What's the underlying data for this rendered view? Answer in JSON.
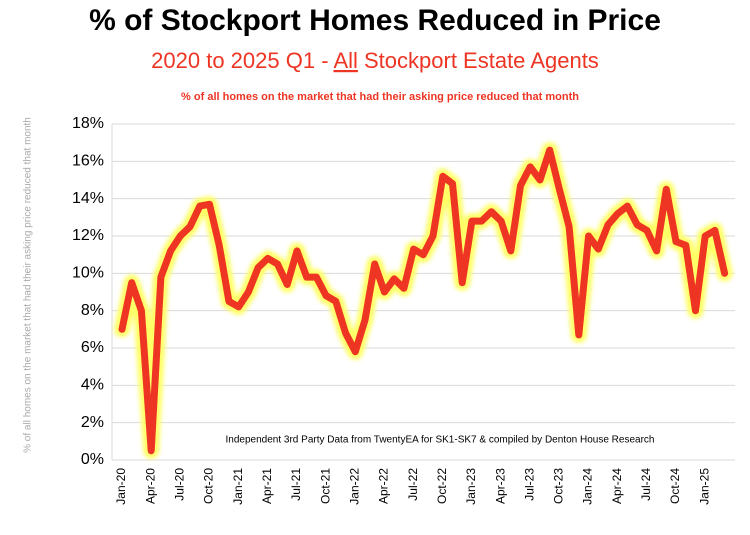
{
  "chart_data": {
    "type": "line",
    "title": "% of Stockport Homes Reduced in Price",
    "subtitle_parts": [
      "2020 to 2025 Q1 - ",
      "All",
      " Stockport Estate Agents"
    ],
    "description": "% of all homes on the market that had their asking price reduced that month",
    "y_label": "% of all homes on the market that had their asking price reduced that month",
    "annotation": "Independent 3rd Party Data from TwentyEA for SK1-SK7 & compiled by Denton House Research",
    "categories": [
      "Jan-20",
      null,
      null,
      "Apr-20",
      null,
      null,
      "Jul-20",
      null,
      null,
      "Oct-20",
      null,
      null,
      "Jan-21",
      null,
      null,
      "Apr-21",
      null,
      null,
      "Jul-21",
      null,
      null,
      "Oct-21",
      null,
      null,
      "Jan-22",
      null,
      null,
      "Apr-22",
      null,
      null,
      "Jul-22",
      null,
      null,
      "Oct-22",
      null,
      null,
      "Jan-23",
      null,
      null,
      "Apr-23",
      null,
      null,
      "Jul-23",
      null,
      null,
      "Oct-23",
      null,
      null,
      "Jan-24",
      null,
      null,
      "Apr-24",
      null,
      null,
      "Jul-24",
      null,
      null,
      "Oct-24",
      null,
      null,
      "Jan-25",
      null,
      null
    ],
    "series": [
      {
        "color": "#ee3524",
        "glow": "#ffff66",
        "values": [
          7,
          9.5,
          8,
          0.5,
          9.8,
          11.2,
          12,
          12.5,
          13.6,
          13.7,
          11.5,
          8.5,
          8.2,
          9,
          10.3,
          10.8,
          10.5,
          9.4,
          11.2,
          9.8,
          9.8,
          8.8,
          8.5,
          6.8,
          5.8,
          7.5,
          10.5,
          9,
          9.7,
          9.2,
          11.3,
          11,
          12,
          15.2,
          14.8,
          9.5,
          12.8,
          12.8,
          13.3,
          12.8,
          11.2,
          14.7,
          15.7,
          15,
          16.6,
          14.5,
          12.5,
          6.7,
          12,
          11.3,
          12.6,
          13.2,
          13.6,
          12.6,
          12.3,
          11.2,
          14.5,
          11.7,
          11.5,
          8,
          12,
          12.3,
          10
        ]
      }
    ],
    "ylim": [
      0,
      18
    ],
    "yticks": [
      {
        "value": 0,
        "label": "0%"
      },
      {
        "value": 2,
        "label": "2%"
      },
      {
        "value": 4,
        "label": "4%"
      },
      {
        "value": 6,
        "label": "6%"
      },
      {
        "value": 8,
        "label": "8%"
      },
      {
        "value": 10,
        "label": "10%"
      },
      {
        "value": 12,
        "label": "12%"
      },
      {
        "value": 14,
        "label": "14%"
      },
      {
        "value": 16,
        "label": "16%"
      },
      {
        "value": 18,
        "label": "18%"
      }
    ],
    "grid": true
  }
}
